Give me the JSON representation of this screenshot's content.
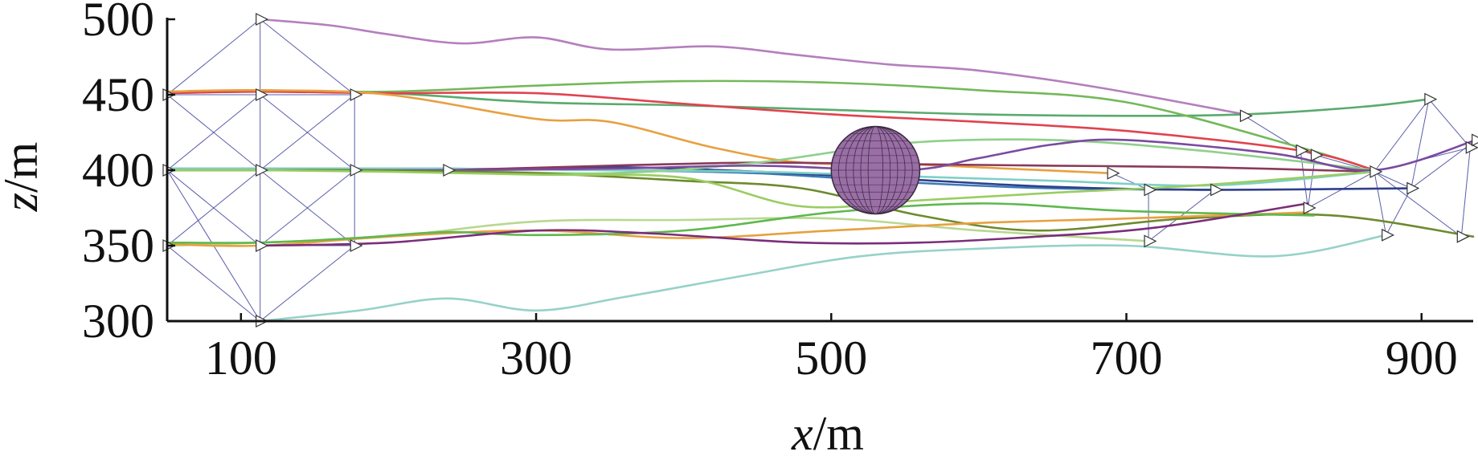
{
  "chart_data": {
    "type": "line",
    "title": "",
    "xlabel": {
      "var": "x",
      "unit": "/m"
    },
    "ylabel": {
      "var": "z",
      "unit": "/m"
    },
    "xlim": [
      50,
      935
    ],
    "ylim": [
      300,
      500
    ],
    "xticks": [
      100,
      300,
      500,
      700,
      900
    ],
    "yticks": [
      300,
      350,
      400,
      450,
      500
    ],
    "grid": false,
    "legend": "none",
    "obstacle": {
      "shape": "sphere",
      "center": [
        530,
        400
      ],
      "radius_x": 30,
      "radius_z": 29,
      "color": "#9a6ea6"
    },
    "formation": {
      "color": "#3c3f9a",
      "start_nodes": [
        [
          50,
          450
        ],
        [
          50,
          400
        ],
        [
          50,
          350
        ],
        [
          113,
          500
        ],
        [
          113,
          450
        ],
        [
          113,
          400
        ],
        [
          113,
          350
        ],
        [
          113,
          300
        ],
        [
          177,
          450
        ],
        [
          177,
          400
        ],
        [
          177,
          350
        ],
        [
          240,
          400
        ]
      ],
      "start_edges": [
        [
          0,
          3
        ],
        [
          0,
          5
        ],
        [
          0,
          4
        ],
        [
          1,
          4
        ],
        [
          1,
          6
        ],
        [
          1,
          5
        ],
        [
          1,
          7
        ],
        [
          2,
          5
        ],
        [
          2,
          7
        ],
        [
          2,
          6
        ],
        [
          3,
          8
        ],
        [
          3,
          4
        ],
        [
          4,
          8
        ],
        [
          4,
          9
        ],
        [
          4,
          5
        ],
        [
          5,
          8
        ],
        [
          5,
          10
        ],
        [
          5,
          6
        ],
        [
          5,
          9
        ],
        [
          6,
          9
        ],
        [
          6,
          10
        ],
        [
          6,
          7
        ],
        [
          7,
          10
        ],
        [
          8,
          9
        ],
        [
          9,
          10
        ],
        [
          9,
          11
        ]
      ],
      "end_nodes": [
        [
          690,
          398
        ],
        [
          715,
          387
        ],
        [
          760,
          387
        ],
        [
          715,
          353
        ],
        [
          780,
          436
        ],
        [
          818,
          413
        ],
        [
          823,
          375
        ],
        [
          828,
          410
        ],
        [
          868,
          399
        ],
        [
          876,
          357
        ],
        [
          893,
          388
        ],
        [
          905,
          447
        ],
        [
          927,
          356
        ],
        [
          933,
          415
        ],
        [
          937,
          420
        ]
      ],
      "end_edges": [
        [
          0,
          1
        ],
        [
          1,
          2
        ],
        [
          1,
          3
        ],
        [
          2,
          3
        ],
        [
          4,
          5
        ],
        [
          5,
          7
        ],
        [
          5,
          6
        ],
        [
          6,
          7
        ],
        [
          7,
          8
        ],
        [
          6,
          8
        ],
        [
          8,
          9
        ],
        [
          8,
          10
        ],
        [
          8,
          11
        ],
        [
          10,
          11
        ],
        [
          11,
          13
        ],
        [
          13,
          12
        ],
        [
          8,
          13
        ],
        [
          8,
          12
        ],
        [
          9,
          10
        ],
        [
          10,
          14
        ]
      ]
    },
    "series": [
      {
        "color": "#b47fbd",
        "x": [
          113,
          160,
          200,
          250,
          300,
          350,
          420,
          480,
          540,
          600,
          680,
          780
        ],
        "y": [
          500,
          496,
          490,
          484,
          488,
          480,
          482,
          476,
          470,
          466,
          455,
          437
        ]
      },
      {
        "color": "#5aaa6e",
        "x": [
          50,
          113,
          200,
          300,
          400,
          500,
          600,
          700,
          780,
          860,
          905
        ],
        "y": [
          451,
          452,
          451,
          445,
          443,
          440,
          437,
          436,
          437,
          442,
          447
        ]
      },
      {
        "color": "#74b85a",
        "x": [
          50,
          113,
          200,
          300,
          400,
          500,
          600,
          700,
          818,
          868
        ],
        "y": [
          452,
          453,
          452,
          456,
          459,
          458,
          453,
          445,
          415,
          400
        ]
      },
      {
        "color": "#e0434e",
        "x": [
          50,
          113,
          200,
          300,
          400,
          500,
          600,
          700,
          818,
          868
        ],
        "y": [
          451,
          452,
          451,
          451,
          444,
          437,
          432,
          426,
          413,
          400
        ]
      },
      {
        "color": "#e8a040",
        "x": [
          50,
          113,
          200,
          300,
          350,
          420,
          480,
          550,
          620,
          690
        ],
        "y": [
          452,
          453,
          450,
          434,
          432,
          415,
          405,
          404,
          401,
          398
        ]
      },
      {
        "color": "#3c7ab8",
        "x": [
          50,
          113,
          177,
          240,
          350,
          450,
          550,
          650,
          760
        ],
        "y": [
          401,
          401,
          401,
          401,
          400,
          398,
          392,
          388,
          387
        ]
      },
      {
        "color": "#2f3f8c",
        "x": [
          50,
          113,
          177,
          240,
          350,
          450,
          550,
          650,
          750,
          893
        ],
        "y": [
          400,
          400,
          400,
          400,
          402,
          399,
          394,
          389,
          387,
          388
        ]
      },
      {
        "color": "#7ed0c6",
        "x": [
          50,
          113,
          177,
          240,
          350,
          450,
          550,
          650,
          760,
          868
        ],
        "y": [
          401,
          401,
          401,
          401,
          400,
          399,
          396,
          393,
          390,
          399
        ]
      },
      {
        "color": "#8a3a5a",
        "x": [
          177,
          240,
          350,
          450,
          550,
          650,
          750,
          868
        ],
        "y": [
          400,
          400,
          403,
          405,
          404,
          403,
          402,
          399
        ]
      },
      {
        "color": "#8fd08a",
        "x": [
          240,
          350,
          450,
          550,
          650,
          750,
          868
        ],
        "y": [
          400,
          398,
          405,
          418,
          420,
          413,
          400
        ]
      },
      {
        "color": "#7a4aa0",
        "x": [
          177,
          240,
          350,
          450,
          550,
          600,
          650,
          700,
          800,
          868,
          937
        ],
        "y": [
          400,
          400,
          401,
          403,
          400,
          408,
          417,
          420,
          411,
          400,
          420
        ]
      },
      {
        "color": "#6e8a2e",
        "x": [
          50,
          113,
          177,
          300,
          400,
          480,
          560,
          640,
          740,
          840,
          935
        ],
        "y": [
          400,
          400,
          400,
          398,
          393,
          388,
          370,
          360,
          368,
          370,
          356
        ]
      },
      {
        "color": "#9acd62",
        "x": [
          50,
          113,
          200,
          300,
          400,
          480,
          560,
          650,
          750,
          868
        ],
        "y": [
          400,
          400,
          399,
          397,
          395,
          376,
          380,
          385,
          390,
          399
        ]
      },
      {
        "color": "#b8d890",
        "x": [
          50,
          113,
          200,
          300,
          400,
          500,
          600,
          715
        ],
        "y": [
          350,
          352,
          356,
          366,
          367,
          368,
          360,
          353
        ]
      },
      {
        "color": "#e8a040",
        "x": [
          50,
          113,
          200,
          300,
          400,
          500,
          600,
          700,
          823
        ],
        "y": [
          351,
          350,
          356,
          360,
          355,
          360,
          365,
          368,
          372
        ]
      },
      {
        "color": "#5fb84e",
        "x": [
          50,
          113,
          177,
          240,
          300,
          400,
          500,
          600,
          700,
          827
        ],
        "y": [
          352,
          352,
          355,
          359,
          357,
          360,
          372,
          378,
          373,
          370
        ]
      },
      {
        "color": "#7a2e7a",
        "x": [
          113,
          200,
          300,
          380,
          480,
          560,
          640,
          720,
          823
        ],
        "y": [
          350,
          352,
          360,
          358,
          352,
          352,
          356,
          362,
          378
        ]
      },
      {
        "color": "#96d2c8",
        "x": [
          113,
          180,
          240,
          300,
          360,
          440,
          520,
          600,
          700,
          800,
          876
        ],
        "y": [
          300,
          307,
          315,
          307,
          316,
          330,
          343,
          348,
          350,
          343,
          357
        ]
      }
    ]
  }
}
